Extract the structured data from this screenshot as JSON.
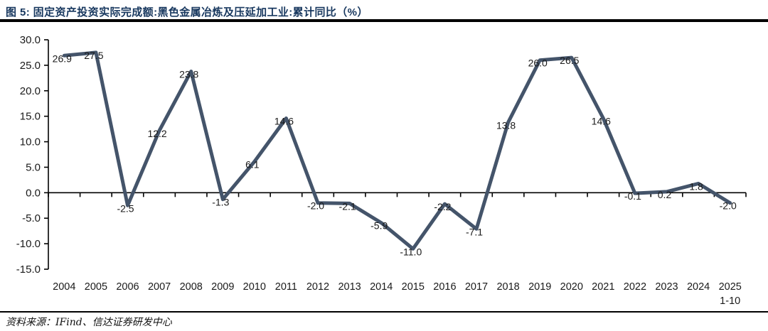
{
  "header": {
    "title": "图 5: 固定资产投资实际完成额:黑色金属冶炼及压延加工业:累计同比（%）"
  },
  "footer": {
    "source": "资料来源：IFind、信达证券研发中心"
  },
  "chart_data": {
    "type": "line",
    "title": "固定资产投资实际完成额:黑色金属冶炼及压延加工业:累计同比（%）",
    "categories": [
      "2004",
      "2005",
      "2006",
      "2007",
      "2008",
      "2009",
      "2010",
      "2011",
      "2012",
      "2013",
      "2014",
      "2015",
      "2016",
      "2017",
      "2018",
      "2019",
      "2020",
      "2021",
      "2022",
      "2023",
      "2024",
      "2025\n1-10"
    ],
    "values": [
      26.9,
      27.5,
      -2.5,
      12.2,
      23.8,
      -1.3,
      6.1,
      14.6,
      -2.0,
      -2.1,
      -5.9,
      -11.0,
      -2.2,
      -7.1,
      13.8,
      26.0,
      26.5,
      14.6,
      -0.1,
      0.2,
      1.8,
      -2.0
    ],
    "xlabel": "",
    "ylabel": "",
    "ylim": [
      -15,
      30
    ],
    "ytick_labels": [
      "30.0",
      "25.0",
      "20.0",
      "15.0",
      "10.0",
      "5.0",
      "0.0",
      "-5.0",
      "-10.0",
      "-15.0"
    ],
    "data_labels": true,
    "grid": false,
    "legend": "none",
    "line_color": "#44546A",
    "label_color": "#1a1a1a",
    "axis_color": "#000000"
  }
}
